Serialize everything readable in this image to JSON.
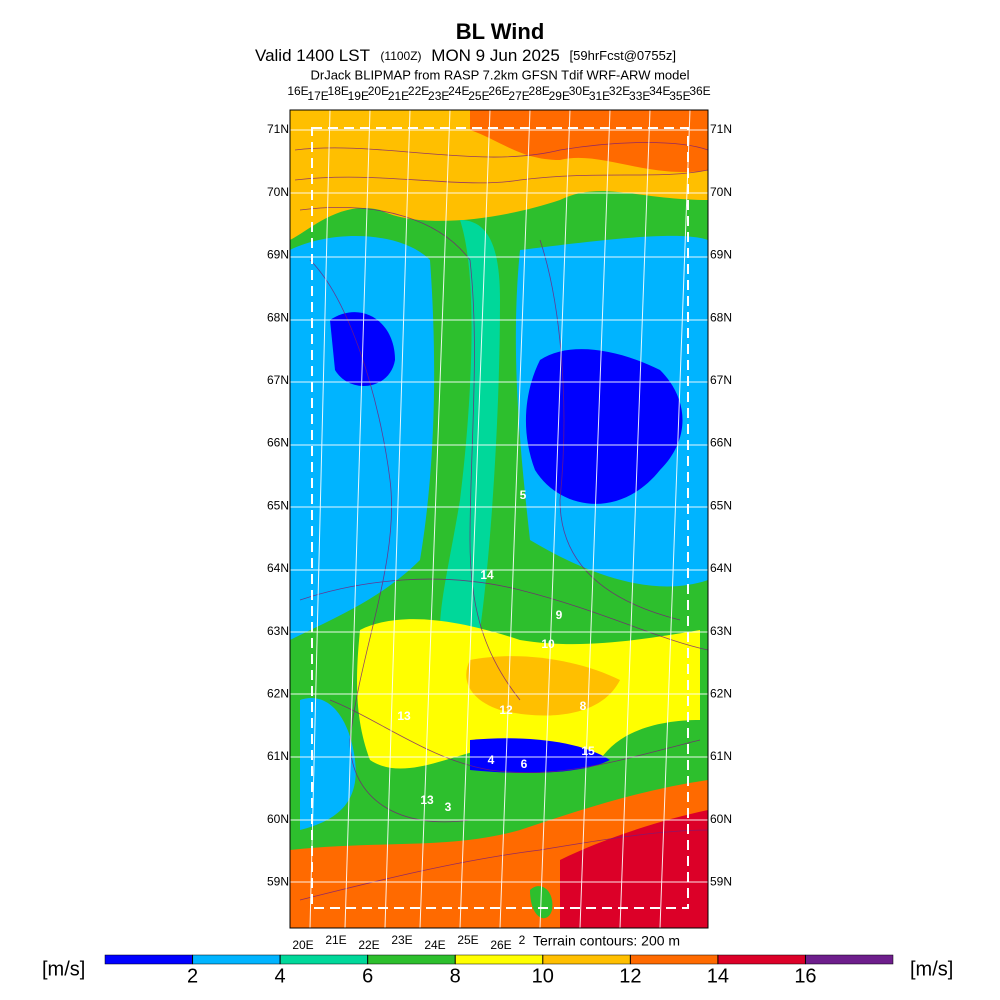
{
  "header": {
    "title": "BL Wind",
    "valid": "Valid 1400 LST",
    "utc": "(1100Z)",
    "date": "MON 9 Jun 2025",
    "forecast": "[59hrFcst@0755z]",
    "subtitle": "DrJack BLIPMAP from RASP 7.2km GFSN Tdif WRF-ARW model"
  },
  "map": {
    "top_lon_labels": [
      "16E",
      "17E",
      "18E",
      "19E",
      "20E",
      "21E",
      "22E",
      "23E",
      "24E",
      "25E",
      "26E",
      "27E",
      "28E",
      "29E",
      "30E",
      "31E",
      "32E",
      "33E",
      "34E",
      "35E",
      "36E"
    ],
    "lat_labels": [
      "71N",
      "70N",
      "69N",
      "68N",
      "67N",
      "66N",
      "65N",
      "64N",
      "63N",
      "62N",
      "61N",
      "60N",
      "59N"
    ],
    "bottom_lon_labels": [
      "20E",
      "21E",
      "22E",
      "23E",
      "24E",
      "25E",
      "26E",
      "2"
    ],
    "value_labels": [
      "5",
      "14",
      "9",
      "10",
      "13",
      "12",
      "8",
      "15",
      "4",
      "6",
      "13",
      "3"
    ],
    "terrain_note": "Terrain contours: 200 m"
  },
  "colorbar": {
    "unit": "[m/s]",
    "range": [
      0,
      18
    ],
    "ticks": [
      2,
      4,
      6,
      8,
      10,
      12,
      14,
      16
    ],
    "colors": [
      "#0000ff",
      "#00b4ff",
      "#00d89a",
      "#2dbf2d",
      "#ffff00",
      "#ffbf00",
      "#ff6a00",
      "#dc0028",
      "#6e1e8c"
    ]
  }
}
